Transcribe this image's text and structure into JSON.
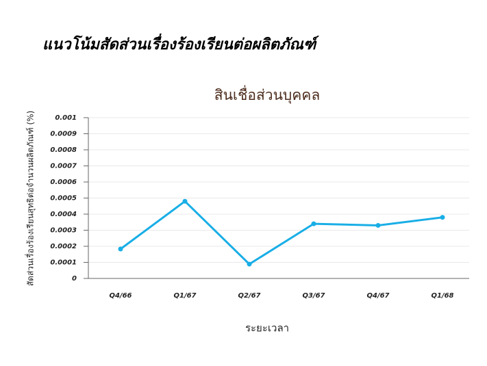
{
  "chart_data": {
    "type": "line",
    "page_title": "แนวโน้มสัดส่วนเรื่องร้องเรียนต่อผลิตภัณฑ์",
    "title": "สินเชื่อส่วนบุคคล",
    "x_label": "ระยะเวลา",
    "y_label": "สัดส่วนเรื่องร้องเรียนสุทธิต่อจำนวนผลิตภัณฑ์ (%)",
    "categories": [
      "Q4/66",
      "Q1/67",
      "Q2/67",
      "Q3/67",
      "Q4/67",
      "Q1/68"
    ],
    "series": [
      {
        "name": "สินเชื่อส่วนบุคคล",
        "color": "#19aee6",
        "values": [
          0.000183,
          0.00048,
          8.9e-05,
          0.00034,
          0.00033,
          0.00038
        ]
      }
    ],
    "ylim": [
      0,
      0.001
    ],
    "yticks": [
      0,
      0.0001,
      0.0002,
      0.0003,
      0.0004,
      0.0005,
      0.0006,
      0.0007,
      0.0008,
      0.0009,
      0.001
    ],
    "grid": true
  }
}
